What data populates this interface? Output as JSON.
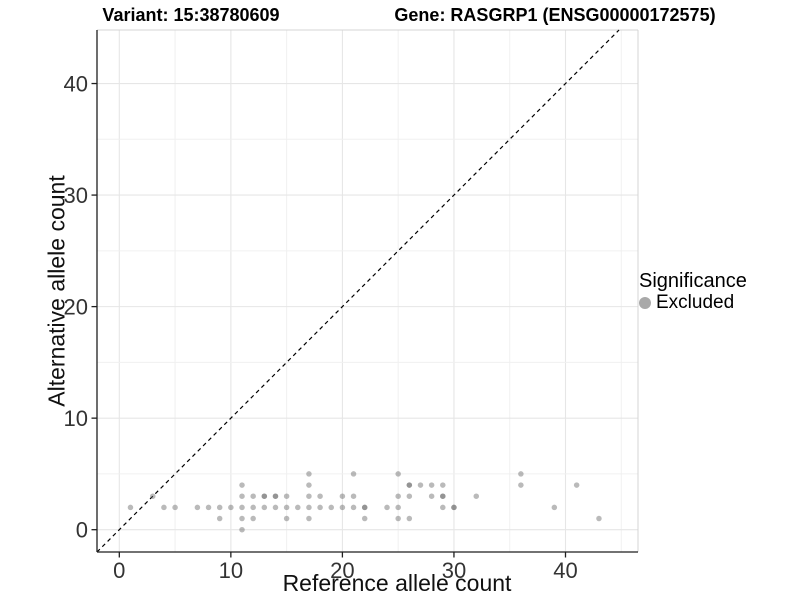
{
  "chart_data": {
    "type": "scatter",
    "titles": {
      "left": "Variant: 15:38780609",
      "right": "Gene: RASGRP1 (ENSG00000172575)"
    },
    "xlabel": "Reference allele count",
    "ylabel": "Alternative allele count",
    "xlim": [
      -2.0,
      46.5
    ],
    "ylim": [
      -2.0,
      44.8
    ],
    "x_ticks": [
      0,
      10,
      20,
      30,
      40
    ],
    "y_ticks": [
      0,
      10,
      20,
      30,
      40
    ],
    "grid": {
      "on": true,
      "major_step": 10,
      "minor_step": 5
    },
    "legend": {
      "title": "Significance",
      "position": "right",
      "items": [
        {
          "label": "Excluded",
          "marker": "circle",
          "color": "#a9a9a9"
        }
      ]
    },
    "identity_line": {
      "equation": "y = x",
      "style": "dashed",
      "color": "#000000"
    },
    "series": [
      {
        "name": "Excluded",
        "color": "#666666",
        "opacity": 0.45,
        "point_radius": 2.75,
        "points": [
          [
            11,
            0
          ],
          [
            9,
            1
          ],
          [
            11,
            1
          ],
          [
            12,
            1
          ],
          [
            15,
            1
          ],
          [
            17,
            1
          ],
          [
            22,
            1
          ],
          [
            25,
            1
          ],
          [
            26,
            1
          ],
          [
            43,
            1
          ],
          [
            1,
            2
          ],
          [
            4,
            2
          ],
          [
            5,
            2
          ],
          [
            7,
            2
          ],
          [
            8,
            2
          ],
          [
            9,
            2
          ],
          [
            10,
            2
          ],
          [
            11,
            2
          ],
          [
            12,
            2
          ],
          [
            13,
            2
          ],
          [
            14,
            2
          ],
          [
            15,
            2
          ],
          [
            16,
            2
          ],
          [
            17,
            2
          ],
          [
            18,
            2
          ],
          [
            19,
            2
          ],
          [
            20,
            2
          ],
          [
            21,
            2
          ],
          [
            22,
            2
          ],
          [
            22,
            2
          ],
          [
            24,
            2
          ],
          [
            25,
            2
          ],
          [
            29,
            2
          ],
          [
            30,
            2
          ],
          [
            30,
            2
          ],
          [
            39,
            2
          ],
          [
            3,
            3
          ],
          [
            11,
            3
          ],
          [
            12,
            3
          ],
          [
            13,
            3
          ],
          [
            13,
            3
          ],
          [
            14,
            3
          ],
          [
            14,
            3
          ],
          [
            15,
            3
          ],
          [
            17,
            3
          ],
          [
            18,
            3
          ],
          [
            20,
            3
          ],
          [
            21,
            3
          ],
          [
            25,
            3
          ],
          [
            26,
            3
          ],
          [
            28,
            3
          ],
          [
            29,
            3
          ],
          [
            29,
            3
          ],
          [
            32,
            3
          ],
          [
            11,
            4
          ],
          [
            17,
            4
          ],
          [
            26,
            4
          ],
          [
            26,
            4
          ],
          [
            27,
            4
          ],
          [
            28,
            4
          ],
          [
            29,
            4
          ],
          [
            36,
            4
          ],
          [
            41,
            4
          ],
          [
            17,
            5
          ],
          [
            21,
            5
          ],
          [
            25,
            5
          ],
          [
            36,
            5
          ]
        ]
      }
    ]
  }
}
